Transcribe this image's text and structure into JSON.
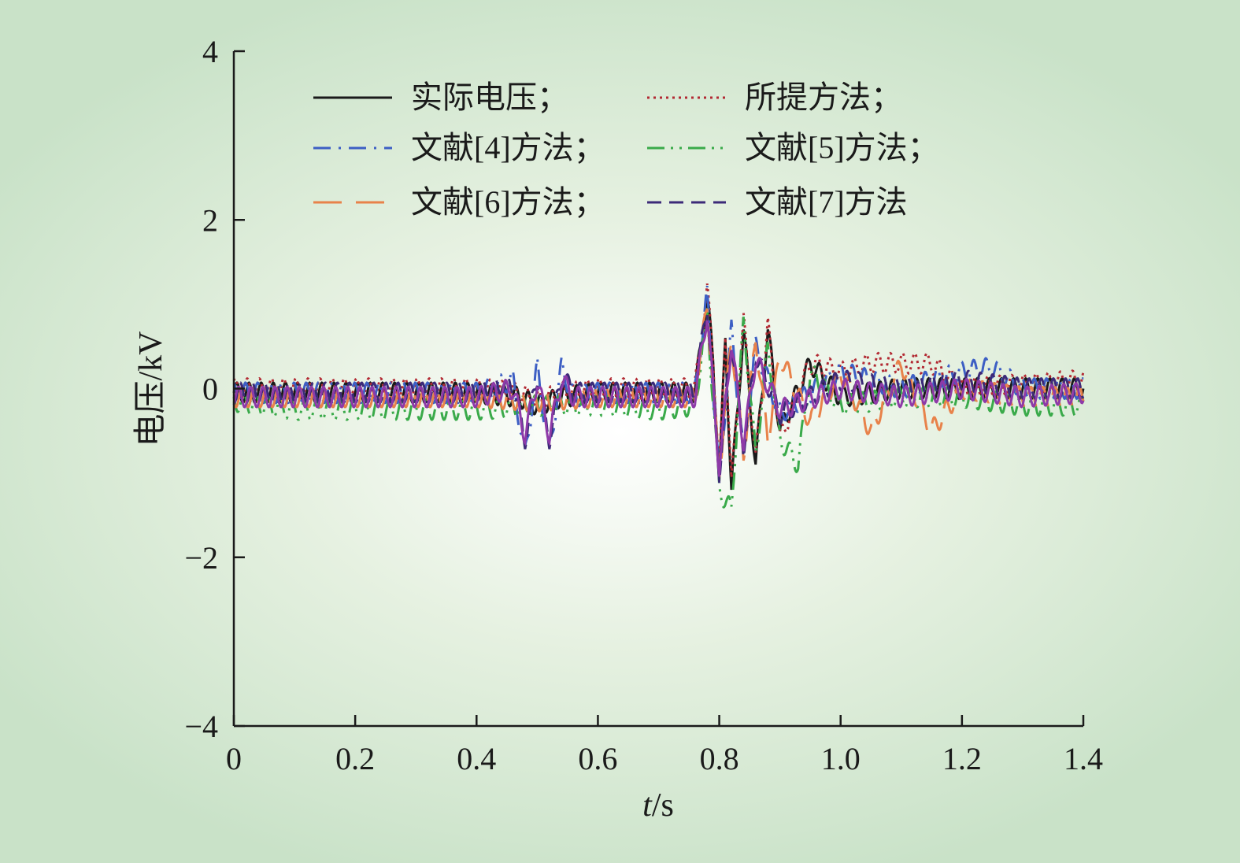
{
  "chart_data": {
    "type": "line",
    "xlabel": "t/s",
    "ylabel": "电压/kV",
    "xlim": [
      0,
      1.4
    ],
    "ylim": [
      -4,
      4
    ],
    "x_ticks": [
      "0",
      "0.2",
      "0.4",
      "0.6",
      "0.8",
      "1.0",
      "1.2",
      "1.4"
    ],
    "y_ticks": [
      "−4",
      "−2",
      "0",
      "2",
      "4"
    ],
    "grid": false,
    "legend_position": "top",
    "series": [
      {
        "name": "实际电压；",
        "color": "#1a1a1a",
        "dash": "solid",
        "x": [
          0.0,
          0.1,
          0.2,
          0.3,
          0.4,
          0.47,
          0.5,
          0.54,
          0.6,
          0.7,
          0.76,
          0.78,
          0.79,
          0.8,
          0.81,
          0.82,
          0.84,
          0.86,
          0.88,
          0.9,
          0.95,
          1.0,
          1.1,
          1.2,
          1.3,
          1.4
        ],
        "y": [
          -0.05,
          -0.05,
          -0.05,
          -0.05,
          -0.05,
          -0.1,
          -0.2,
          -0.1,
          -0.05,
          -0.05,
          -0.05,
          1.1,
          0.3,
          -1.1,
          0.6,
          -1.2,
          0.7,
          -0.9,
          0.7,
          -0.5,
          0.3,
          -0.1,
          0.0,
          0.0,
          0.0,
          0.0
        ]
      },
      {
        "name": "所提方法；",
        "color": "#b22a33",
        "dash": "dotted",
        "x": [
          0.0,
          0.1,
          0.2,
          0.3,
          0.4,
          0.47,
          0.5,
          0.54,
          0.6,
          0.7,
          0.76,
          0.78,
          0.79,
          0.8,
          0.81,
          0.82,
          0.84,
          0.86,
          0.88,
          0.9,
          0.95,
          1.0,
          1.05,
          1.1,
          1.15,
          1.2,
          1.3,
          1.4
        ],
        "y": [
          0.0,
          0.0,
          0.0,
          0.0,
          0.0,
          -0.05,
          -0.15,
          -0.05,
          0.0,
          0.0,
          0.0,
          1.15,
          0.4,
          -1.05,
          0.7,
          -1.15,
          0.8,
          -0.85,
          0.75,
          -0.6,
          0.3,
          0.2,
          0.3,
          0.3,
          0.3,
          0.0,
          0.05,
          0.1
        ]
      },
      {
        "name": "文献[4]方法；",
        "color": "#3d5fc4",
        "dash": "dashdot",
        "x": [
          0.0,
          0.1,
          0.2,
          0.3,
          0.4,
          0.46,
          0.48,
          0.5,
          0.52,
          0.54,
          0.56,
          0.6,
          0.7,
          0.76,
          0.78,
          0.8,
          0.82,
          0.84,
          0.86,
          0.9,
          1.0,
          1.1,
          1.2,
          1.25,
          1.3,
          1.4
        ],
        "y": [
          -0.05,
          -0.05,
          -0.05,
          -0.05,
          -0.05,
          0.1,
          -0.8,
          0.25,
          -0.75,
          0.25,
          -0.1,
          -0.05,
          -0.05,
          -0.05,
          1.1,
          -1.1,
          0.7,
          -0.8,
          0.5,
          -0.3,
          0.2,
          0.0,
          0.2,
          0.25,
          0.0,
          0.0
        ]
      },
      {
        "name": "文献[5]方法；",
        "color": "#3aaa4a",
        "dash": "dashdotdot",
        "x": [
          0.0,
          0.1,
          0.2,
          0.3,
          0.4,
          0.5,
          0.6,
          0.7,
          0.76,
          0.78,
          0.8,
          0.82,
          0.84,
          0.86,
          0.88,
          0.9,
          0.93,
          0.95,
          1.0,
          1.1,
          1.2,
          1.3,
          1.4
        ],
        "y": [
          -0.15,
          -0.25,
          -0.25,
          -0.25,
          -0.25,
          -0.2,
          -0.2,
          -0.25,
          -0.2,
          0.9,
          -1.2,
          -1.45,
          0.8,
          -0.8,
          0.5,
          -0.6,
          -0.9,
          0.2,
          -0.2,
          -0.1,
          -0.1,
          -0.2,
          -0.2
        ]
      },
      {
        "name": "文献[6]方法；",
        "color": "#e8824a",
        "dash": "longdash",
        "x": [
          0.0,
          0.1,
          0.2,
          0.3,
          0.4,
          0.5,
          0.6,
          0.7,
          0.76,
          0.78,
          0.8,
          0.82,
          0.84,
          0.86,
          0.88,
          0.9,
          0.95,
          1.0,
          1.05,
          1.1,
          1.15,
          1.2,
          1.3,
          1.4
        ],
        "y": [
          -0.1,
          -0.1,
          -0.1,
          -0.1,
          -0.1,
          -0.15,
          -0.1,
          -0.1,
          -0.1,
          1.0,
          -1.0,
          0.6,
          -0.8,
          0.6,
          -0.6,
          0.4,
          -0.4,
          0.2,
          -0.5,
          0.3,
          -0.5,
          0.0,
          -0.1,
          -0.1
        ]
      },
      {
        "name": "文献[7]方法",
        "color": "#3c2a78",
        "dash": "dashed",
        "x": [
          0.0,
          0.1,
          0.2,
          0.3,
          0.4,
          0.46,
          0.48,
          0.5,
          0.52,
          0.54,
          0.56,
          0.6,
          0.7,
          0.76,
          0.78,
          0.8,
          0.82,
          0.84,
          0.86,
          0.9,
          1.0,
          1.1,
          1.2,
          1.3,
          1.4
        ],
        "y": [
          -0.05,
          -0.05,
          -0.05,
          -0.05,
          -0.05,
          0.05,
          -0.6,
          0.15,
          -0.6,
          0.15,
          -0.05,
          -0.05,
          -0.05,
          -0.05,
          1.0,
          -1.0,
          0.6,
          -0.7,
          0.4,
          -0.3,
          0.1,
          0.0,
          0.1,
          0.0,
          0.0
        ]
      },
      {
        "name": "",
        "color": "#8e3aa8",
        "dash": "solid",
        "x": [
          0.0,
          0.1,
          0.2,
          0.3,
          0.4,
          0.46,
          0.48,
          0.5,
          0.52,
          0.54,
          0.56,
          0.6,
          0.7,
          0.76,
          0.78,
          0.8,
          0.82,
          0.84,
          0.86,
          0.9,
          1.0,
          1.1,
          1.2,
          1.3,
          1.4
        ],
        "y": [
          -0.1,
          -0.1,
          -0.1,
          -0.1,
          -0.1,
          0.0,
          -0.55,
          0.1,
          -0.55,
          0.1,
          -0.1,
          -0.1,
          -0.1,
          -0.1,
          0.9,
          -0.95,
          0.55,
          -0.65,
          0.35,
          -0.25,
          0.0,
          -0.1,
          0.0,
          -0.1,
          -0.05
        ]
      }
    ],
    "legend": {
      "items": [
        "实际电压；",
        "所提方法；",
        "文献[4]方法；",
        "文献[5]方法；",
        "文献[6]方法；",
        "文献[7]方法"
      ],
      "colors": [
        "#1a1a1a",
        "#b22a33",
        "#3d5fc4",
        "#3aaa4a",
        "#e8824a",
        "#3c2a78"
      ],
      "dash": [
        "solid",
        "dotted",
        "dashdot",
        "dashdotdot",
        "longdash",
        "dashed"
      ]
    }
  }
}
